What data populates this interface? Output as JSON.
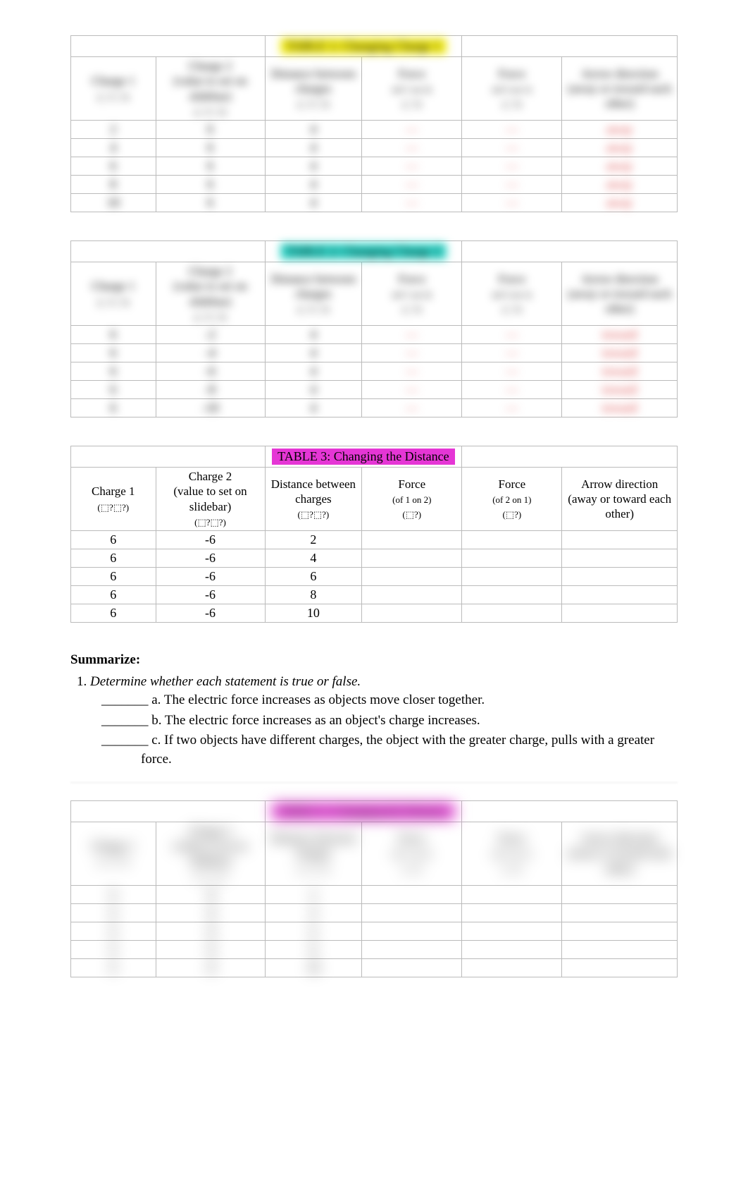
{
  "tables": [
    {
      "title": "TABLE 1: Changing Charge 1",
      "title_bg": "#f3ec1a",
      "title_color": "#000000",
      "blur": "blurred",
      "headers": [
        {
          "main": "Charge 1",
          "sub": "(⬚?⬚?)"
        },
        {
          "main": "Charge 2\n(value to set on slidebar)",
          "sub": "(⬚?⬚?)"
        },
        {
          "main": "Distance between charges",
          "sub": "(⬚?⬚?)"
        },
        {
          "main": "Force",
          "sub": "(of 1 on 2)\n(⬚?)"
        },
        {
          "main": "Force",
          "sub": "(of 2 on 1)\n(⬚?)"
        },
        {
          "main": "Arrow direction (away or toward each other)",
          "sub": ""
        }
      ],
      "rows": [
        [
          "2",
          "6",
          "4",
          "—",
          "—",
          "away"
        ],
        [
          "4",
          "6",
          "4",
          "—",
          "—",
          "away"
        ],
        [
          "6",
          "6",
          "4",
          "—",
          "—",
          "away"
        ],
        [
          "8",
          "6",
          "4",
          "—",
          "—",
          "away"
        ],
        [
          "10",
          "6",
          "4",
          "—",
          "—",
          "away"
        ]
      ],
      "red_cols": [
        3,
        4,
        5
      ]
    },
    {
      "title": "TABLE 2: Changing Charge 2",
      "title_bg": "#2fd6c9",
      "title_color": "#000000",
      "blur": "blurred",
      "headers": [
        {
          "main": "Charge 1",
          "sub": "(⬚?⬚?)"
        },
        {
          "main": "Charge 2\n(value to set on slidebar)",
          "sub": "(⬚?⬚?)"
        },
        {
          "main": "Distance between charges",
          "sub": "(⬚?⬚?)"
        },
        {
          "main": "Force",
          "sub": "(of 1 on 2)\n(⬚?)"
        },
        {
          "main": "Force",
          "sub": "(of 2 on 1)\n(⬚?)"
        },
        {
          "main": "Arrow direction (away or toward each other)",
          "sub": ""
        }
      ],
      "rows": [
        [
          "6",
          "-2",
          "4",
          "—",
          "—",
          "toward"
        ],
        [
          "6",
          "-4",
          "4",
          "—",
          "—",
          "toward"
        ],
        [
          "6",
          "-6",
          "4",
          "—",
          "—",
          "toward"
        ],
        [
          "6",
          "-8",
          "4",
          "—",
          "—",
          "toward"
        ],
        [
          "6",
          "-10",
          "4",
          "—",
          "—",
          "toward"
        ]
      ],
      "red_cols": [
        3,
        4,
        5
      ]
    },
    {
      "title": "TABLE 3: Changing the Distance",
      "title_bg": "#e536d5",
      "title_color": "#000000",
      "blur": "",
      "headers": [
        {
          "main": "Charge 1",
          "sub": "(⬚?⬚?)"
        },
        {
          "main": "Charge 2\n(value to set on slidebar)",
          "sub": "(⬚?⬚?)"
        },
        {
          "main": "Distance between charges",
          "sub": "(⬚?⬚?)"
        },
        {
          "main": "Force",
          "sub": "(of 1 on 2)\n(⬚?)"
        },
        {
          "main": "Force",
          "sub": "(of 2 on 1)\n(⬚?)"
        },
        {
          "main": "Arrow direction (away or toward each other)",
          "sub": ""
        }
      ],
      "rows": [
        [
          "6",
          "-6",
          "2",
          "",
          "",
          ""
        ],
        [
          "6",
          "-6",
          "4",
          "",
          "",
          ""
        ],
        [
          "6",
          "-6",
          "6",
          "",
          "",
          ""
        ],
        [
          "6",
          "-6",
          "8",
          "",
          "",
          ""
        ],
        [
          "6",
          "-6",
          "10",
          "",
          "",
          ""
        ]
      ],
      "red_cols": []
    },
    {
      "title": "TABLE 3: Changing the Distance",
      "title_bg": "#e536d5",
      "title_color": "#000000",
      "blur": "blurred-heavy",
      "headers": [
        {
          "main": "Charge 1",
          "sub": "(⬚?⬚?)"
        },
        {
          "main": "Charge 2\n(value to set on slidebar)",
          "sub": "(⬚?⬚?)"
        },
        {
          "main": "Distance between charges",
          "sub": "(⬚?⬚?)"
        },
        {
          "main": "Force",
          "sub": "(of 1 on 2)\n(⬚?)"
        },
        {
          "main": "Force",
          "sub": "(of 2 on 1)\n(⬚?)"
        },
        {
          "main": "Arrow direction (away or toward each other)",
          "sub": ""
        }
      ],
      "rows": [
        [
          "6",
          "-6",
          "2",
          "",
          "",
          ""
        ],
        [
          "6",
          "-6",
          "4",
          "",
          "",
          ""
        ],
        [
          "6",
          "-6",
          "6",
          "",
          "",
          ""
        ],
        [
          "6",
          "-6",
          "8",
          "",
          "",
          ""
        ],
        [
          "6",
          "-6",
          "10",
          "",
          "",
          ""
        ]
      ],
      "red_cols": []
    }
  ],
  "summarize": {
    "heading": "Summarize:",
    "intro_number": "1.",
    "intro": "Determine whether each statement is true or false.",
    "items": [
      {
        "blank": "_______",
        "letter": "a.",
        "text": "The electric force increases as objects move closer together."
      },
      {
        "blank": "_______",
        "letter": "b.",
        "text": "The electric force increases as an object's charge increases."
      },
      {
        "blank": "_______",
        "letter": "c.",
        "text": "If two objects have different charges, the object with the greater charge, pulls with a greater force."
      }
    ]
  },
  "col_widths": [
    "14%",
    "18%",
    "16%",
    "16.5%",
    "16.5%",
    "19%"
  ]
}
